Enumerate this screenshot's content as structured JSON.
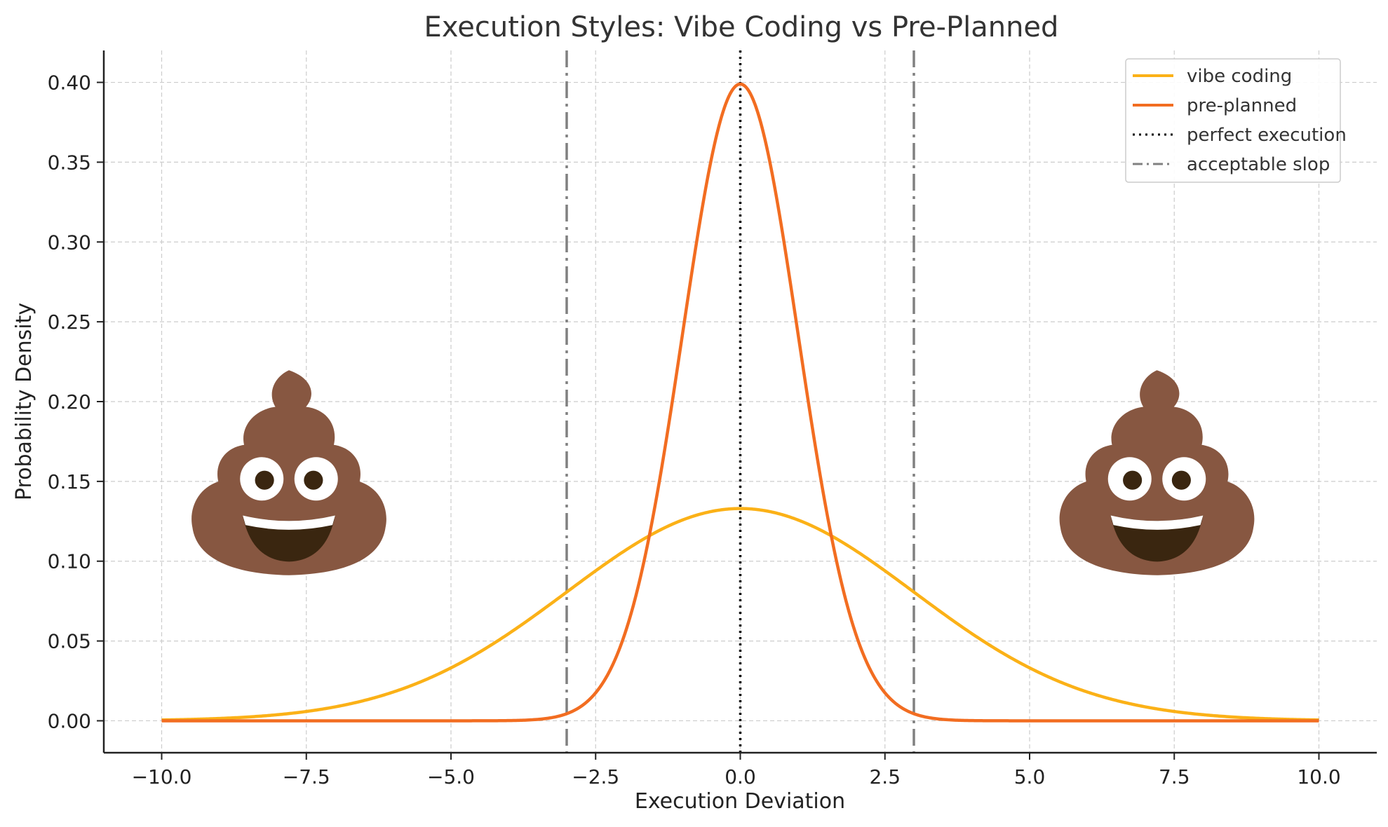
{
  "chart_data": {
    "type": "line",
    "title": "Execution Styles: Vibe Coding vs Pre-Planned",
    "xlabel": "Execution Deviation",
    "ylabel": "Probability Density",
    "xlim": [
      -11,
      11
    ],
    "ylim": [
      -0.02,
      0.42
    ],
    "grid": true,
    "legend_position": "top-right",
    "x_ticks": [
      -10.0,
      -7.5,
      -5.0,
      -2.5,
      0.0,
      2.5,
      5.0,
      7.5,
      10.0
    ],
    "x_tick_labels": [
      "−10.0",
      "−7.5",
      "−5.0",
      "−2.5",
      "0.0",
      "2.5",
      "5.0",
      "7.5",
      "10.0"
    ],
    "y_ticks": [
      0.0,
      0.05,
      0.1,
      0.15,
      0.2,
      0.25,
      0.3,
      0.35,
      0.4
    ],
    "y_tick_labels": [
      "0.00",
      "0.05",
      "0.10",
      "0.15",
      "0.20",
      "0.25",
      "0.30",
      "0.35",
      "0.40"
    ],
    "series": [
      {
        "name": "vibe coding",
        "color": "#FBB117",
        "style": "solid",
        "distribution": "normal",
        "mean": 0,
        "std": 3,
        "x_range": [
          -10,
          10
        ],
        "peak": 0.133
      },
      {
        "name": "pre-planned",
        "color": "#F26D21",
        "style": "solid",
        "distribution": "normal",
        "mean": 0,
        "std": 1,
        "x_range": [
          -10,
          10
        ],
        "peak": 0.399
      }
    ],
    "reference_lines": [
      {
        "name": "perfect execution",
        "orientation": "vertical",
        "x": [
          0
        ],
        "color": "#000000",
        "style": "dotted"
      },
      {
        "name": "acceptable slop",
        "orientation": "vertical",
        "x": [
          -3,
          3
        ],
        "color": "#808080",
        "style": "dashdot"
      }
    ],
    "annotations": [
      {
        "icon": "poop-emoji-icon",
        "x": -7.8,
        "y": 0.155
      },
      {
        "icon": "poop-emoji-icon",
        "x": 7.2,
        "y": 0.155
      }
    ]
  }
}
